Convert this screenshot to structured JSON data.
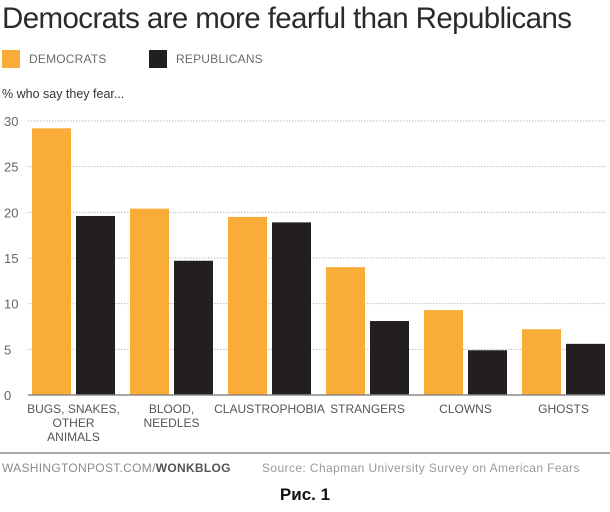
{
  "chart_data": {
    "type": "bar",
    "title": "Democrats are more fearful than Republicans",
    "subtitle": "% who say they fear...",
    "xlabel": "",
    "ylabel": "",
    "ylim": [
      0,
      30
    ],
    "yticks": [
      0,
      5,
      10,
      15,
      20,
      25,
      30
    ],
    "grid": true,
    "legend_position": "top-left",
    "categories": [
      [
        "BUGS, SNAKES,",
        "OTHER",
        "ANIMALS"
      ],
      [
        "BLOOD,",
        "NEEDLES"
      ],
      [
        "CLAUSTROPHOBIA"
      ],
      [
        "STRANGERS"
      ],
      [
        "CLOWNS"
      ],
      [
        "GHOSTS"
      ]
    ],
    "series": [
      {
        "name": "DEMOCRATS",
        "color": "#f9ad38",
        "values": [
          29.2,
          20.4,
          19.5,
          14.0,
          9.3,
          7.2
        ]
      },
      {
        "name": "REPUBLICANS",
        "color": "#231f20",
        "values": [
          19.6,
          14.7,
          18.9,
          8.1,
          4.9,
          5.6
        ]
      }
    ]
  },
  "footer": {
    "credit_prefix": "WASHINGTONPOST.COM/",
    "credit_bold": "WONKBLOG",
    "source": "Source: Chapman University Survey on American Fears"
  },
  "caption": "Рис. 1"
}
